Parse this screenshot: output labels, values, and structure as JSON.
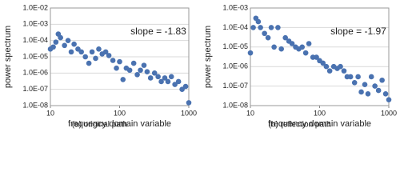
{
  "chart_data": [
    {
      "type": "scatter",
      "color": "#4a72b0",
      "xlog": true,
      "ylog": true,
      "grid": true,
      "xlabel": "frequency domain variable",
      "ylabel": "power spectrum",
      "annotation": "slope = -1.83",
      "caption": "(a) original path",
      "xlim": [
        10,
        1000
      ],
      "ylim": [
        1e-08,
        0.01
      ],
      "xticks": [
        10,
        100,
        1000
      ],
      "yticks": [
        {
          "value": 1e-08,
          "label": "1.0E-08"
        },
        {
          "value": 1e-07,
          "label": "1.0E-07"
        },
        {
          "value": 1e-06,
          "label": "1.0E-06"
        },
        {
          "value": 1e-05,
          "label": "1.0E-05"
        },
        {
          "value": 0.0001,
          "label": "1.0E-04"
        },
        {
          "value": 0.001,
          "label": "1.0E-03"
        },
        {
          "value": 0.01,
          "label": "1.0E-02"
        }
      ],
      "x": [
        10,
        11,
        12,
        13,
        14,
        16,
        18,
        20,
        22,
        25,
        28,
        32,
        36,
        40,
        45,
        50,
        56,
        63,
        70,
        80,
        90,
        100,
        112,
        125,
        140,
        160,
        180,
        200,
        225,
        250,
        280,
        320,
        360,
        400,
        450,
        500,
        560,
        630,
        710,
        800,
        900,
        1000
      ],
      "values": [
        3e-05,
        4e-05,
        8e-05,
        0.00025,
        0.00015,
        5e-05,
        0.0001,
        2e-05,
        6e-05,
        3e-05,
        2e-05,
        1e-05,
        4e-06,
        2e-05,
        8e-06,
        3e-05,
        1.5e-05,
        2e-05,
        1.2e-05,
        6e-06,
        2e-06,
        5e-06,
        4e-07,
        2e-06,
        1.5e-06,
        4e-06,
        8e-07,
        1.5e-06,
        3e-06,
        1.2e-06,
        5e-07,
        1e-06,
        6e-07,
        3e-07,
        5e-07,
        3e-07,
        6e-07,
        2e-07,
        3e-07,
        1e-07,
        1.5e-07,
        1.5e-08
      ]
    },
    {
      "type": "scatter",
      "color": "#4a72b0",
      "xlog": true,
      "ylog": true,
      "grid": true,
      "xlabel": "frequency domain variable",
      "ylabel": "power spectrum",
      "annotation": "slope = -1.97",
      "caption": "(b) reflection path",
      "xlim": [
        10,
        1000
      ],
      "ylim": [
        1e-08,
        0.001
      ],
      "xticks": [
        10,
        100,
        1000
      ],
      "yticks": [
        {
          "value": 1e-08,
          "label": "1.0E-08"
        },
        {
          "value": 1e-07,
          "label": "1.0E-07"
        },
        {
          "value": 1e-06,
          "label": "1.0E-06"
        },
        {
          "value": 1e-05,
          "label": "1.0E-05"
        },
        {
          "value": 0.0001,
          "label": "1.0E-04"
        },
        {
          "value": 0.001,
          "label": "1.0E-03"
        }
      ],
      "x": [
        10,
        11,
        12,
        13,
        14,
        16,
        18,
        20,
        22,
        25,
        28,
        32,
        36,
        40,
        45,
        50,
        56,
        63,
        70,
        80,
        90,
        100,
        112,
        125,
        140,
        160,
        180,
        200,
        225,
        250,
        280,
        320,
        360,
        400,
        450,
        500,
        560,
        630,
        710,
        800,
        900,
        1000
      ],
      "values": [
        5e-06,
        0.0001,
        0.0003,
        0.0002,
        0.0001,
        5e-05,
        3e-05,
        0.0001,
        1e-05,
        0.0001,
        8e-06,
        3e-05,
        2e-05,
        1.5e-05,
        1e-05,
        8e-06,
        1e-05,
        5e-06,
        1.5e-05,
        3e-06,
        3e-06,
        2e-06,
        1.5e-06,
        1e-06,
        6e-07,
        1e-06,
        8e-07,
        1e-06,
        6e-07,
        3e-07,
        3e-07,
        1.5e-07,
        3e-07,
        5e-08,
        1.2e-07,
        4e-08,
        3e-07,
        1e-07,
        6e-08,
        2e-07,
        4e-08,
        2e-08
      ]
    }
  ]
}
